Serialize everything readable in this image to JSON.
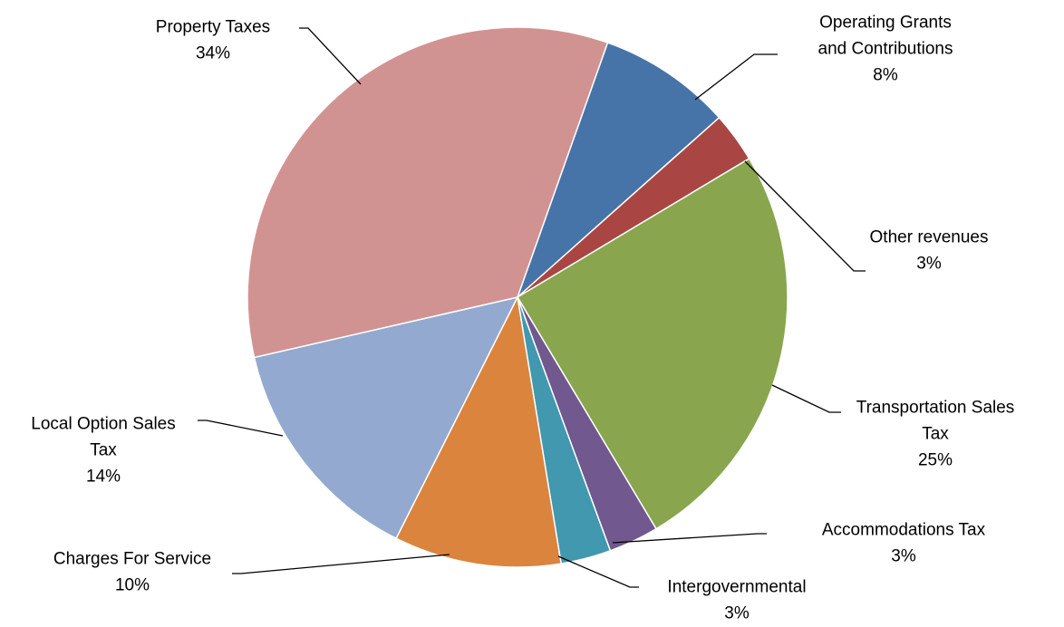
{
  "chart_data": {
    "type": "pie",
    "title": "",
    "start_angle_deg": 70.5,
    "direction": "clockwise",
    "slices": [
      {
        "label": "Operating Grants and Contributions",
        "label_lines": [
          "Operating Grants",
          "and Contributions"
        ],
        "pct_label": "8%",
        "value": 8,
        "color": "#4674a8"
      },
      {
        "label": "Other revenues",
        "label_lines": [
          "Other revenues"
        ],
        "pct_label": "3%",
        "value": 3,
        "color": "#a94643"
      },
      {
        "label": "Transportation Sales Tax",
        "label_lines": [
          "Transportation Sales",
          "Tax"
        ],
        "pct_label": "25%",
        "value": 25,
        "color": "#89a54e"
      },
      {
        "label": "Accommodations Tax",
        "label_lines": [
          "Accommodations Tax"
        ],
        "pct_label": "3%",
        "value": 3,
        "color": "#71588f"
      },
      {
        "label": "Intergovernmental",
        "label_lines": [
          "Intergovernmental"
        ],
        "pct_label": "3%",
        "value": 3,
        "color": "#4198af"
      },
      {
        "label": "Charges For Service",
        "label_lines": [
          "Charges For Service"
        ],
        "pct_label": "10%",
        "value": 10,
        "color": "#db843d"
      },
      {
        "label": "Local Option Sales Tax",
        "label_lines": [
          "Local Option Sales",
          "Tax"
        ],
        "pct_label": "14%",
        "value": 14,
        "color": "#93a9cf"
      },
      {
        "label": "Property Taxes",
        "label_lines": [
          "Property Taxes"
        ],
        "pct_label": "34%",
        "value": 34,
        "color": "#d19392"
      }
    ]
  }
}
